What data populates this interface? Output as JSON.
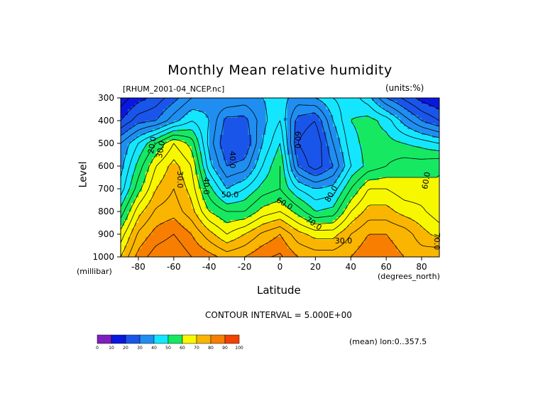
{
  "chart_data": {
    "type": "heatmap",
    "title": "Monthly Mean relative humidity",
    "subtitle": "[RHUM_2001-04_NCEP.nc]",
    "units_label": "(units:%)",
    "xlabel": "Latitude",
    "xlabel_units": "(degrees_north)",
    "ylabel": "Level",
    "ylabel_units": "(millibar)",
    "xlim": [
      -90,
      90
    ],
    "ylim": [
      1000,
      300
    ],
    "x_ticks": [
      -80,
      -60,
      -40,
      -20,
      0,
      20,
      40,
      60,
      80
    ],
    "y_ticks": [
      300,
      400,
      500,
      600,
      700,
      800,
      900,
      1000
    ],
    "contour_interval_text": "CONTOUR INTERVAL = 5.000E+00",
    "footer_text": "(mean) lon:0..357.5",
    "colorbar": {
      "ticks": [
        0,
        10,
        20,
        30,
        40,
        50,
        60,
        70,
        80,
        90,
        100
      ],
      "colors": [
        "#7f1fbf",
        "#0a17e0",
        "#1a55ea",
        "#1f8ef0",
        "#14e6ff",
        "#16e862",
        "#f7f700",
        "#f9b500",
        "#f77e00",
        "#f44000"
      ]
    },
    "latitudes": [
      -90,
      -80,
      -70,
      -60,
      -50,
      -40,
      -30,
      -20,
      -10,
      0,
      10,
      20,
      30,
      40,
      50,
      60,
      70,
      80,
      90
    ],
    "levels": [
      300,
      400,
      500,
      600,
      700,
      800,
      900,
      1000
    ],
    "values": [
      [
        12,
        18,
        22,
        28,
        35,
        38,
        40,
        38,
        40,
        42,
        38,
        40,
        45,
        48,
        42,
        30,
        24,
        18,
        15
      ],
      [
        20,
        28,
        30,
        38,
        45,
        40,
        28,
        28,
        38,
        45,
        28,
        25,
        40,
        50,
        52,
        48,
        38,
        30,
        25
      ],
      [
        35,
        45,
        55,
        65,
        58,
        38,
        25,
        25,
        40,
        50,
        25,
        20,
        35,
        48,
        52,
        52,
        50,
        48,
        45
      ],
      [
        38,
        52,
        65,
        72,
        65,
        42,
        30,
        32,
        45,
        55,
        30,
        22,
        30,
        45,
        52,
        55,
        58,
        58,
        60
      ],
      [
        42,
        58,
        70,
        75,
        68,
        52,
        40,
        45,
        52,
        55,
        45,
        40,
        42,
        55,
        65,
        65,
        62,
        62,
        60
      ],
      [
        52,
        68,
        76,
        78,
        72,
        60,
        55,
        55,
        62,
        65,
        58,
        50,
        52,
        65,
        72,
        72,
        68,
        66,
        62
      ],
      [
        62,
        76,
        82,
        85,
        80,
        72,
        65,
        70,
        76,
        80,
        72,
        68,
        68,
        75,
        80,
        80,
        78,
        72,
        68
      ],
      [
        70,
        82,
        88,
        90,
        85,
        82,
        78,
        80,
        84,
        86,
        80,
        78,
        78,
        80,
        84,
        82,
        80,
        78,
        80
      ]
    ],
    "contour_labels": [
      "20.0",
      "30.0",
      "30.0",
      "40.0",
      "40.0",
      "50.0",
      "60.0",
      "60.0",
      "70.0",
      "80.0",
      "30.0",
      "60.0",
      "70.0"
    ]
  }
}
